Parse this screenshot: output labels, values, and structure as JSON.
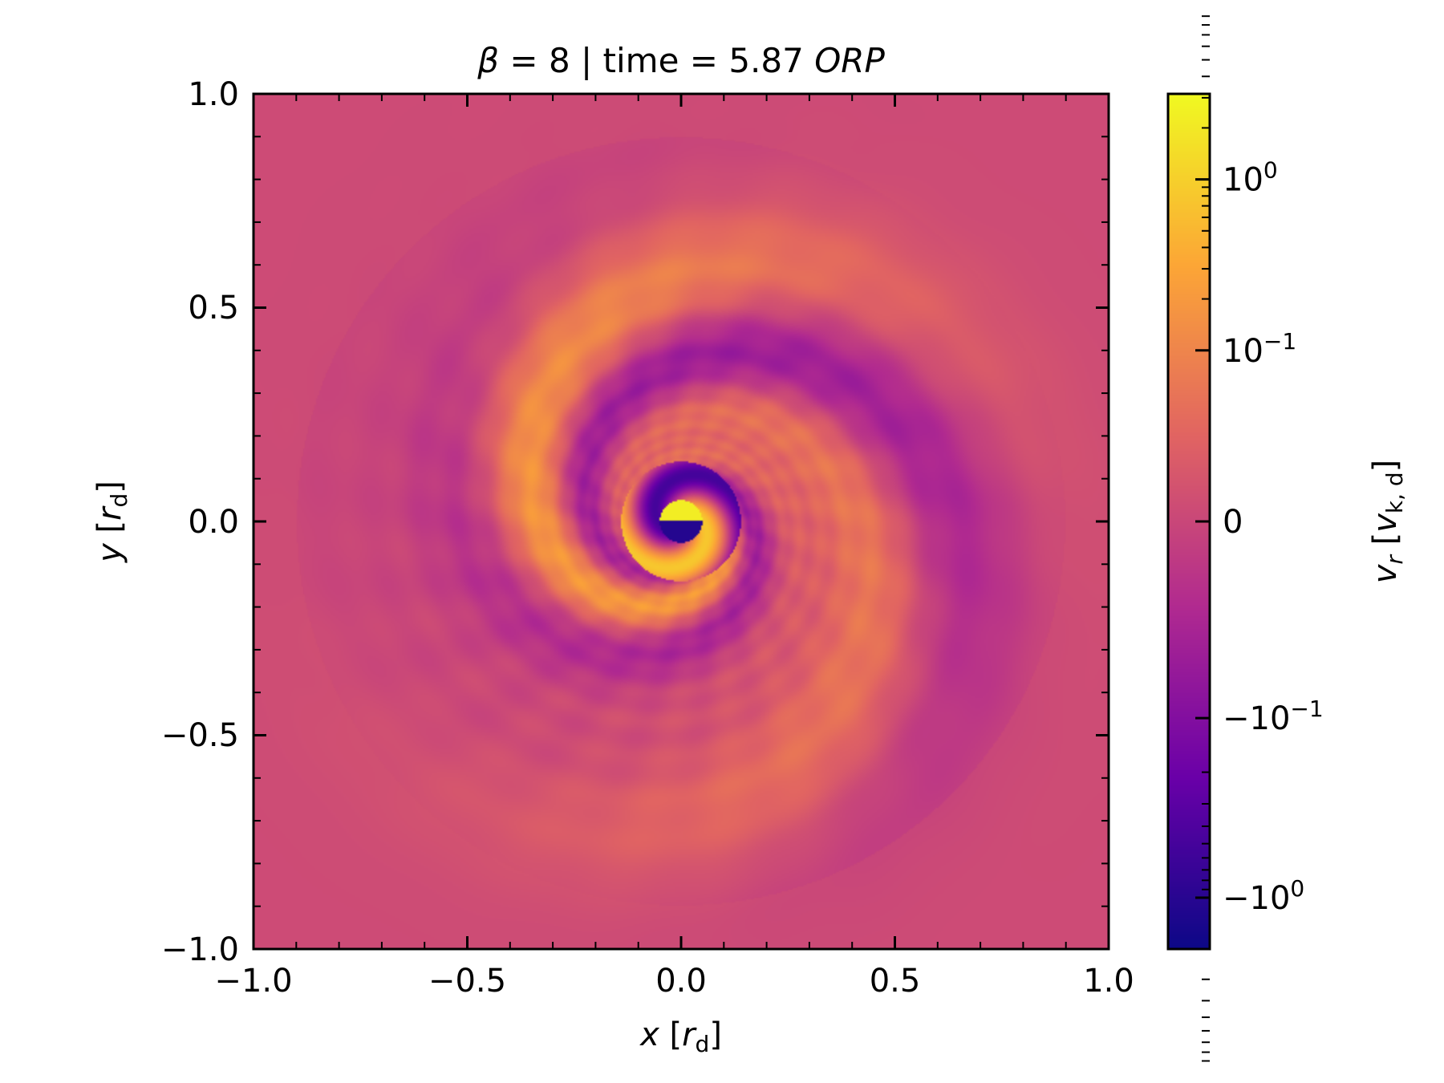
{
  "title": {
    "beta_symbol": "β",
    "beta_value": "8",
    "time_label": "time",
    "time_value": "5.87",
    "unit": "ORP"
  },
  "axes": {
    "x": {
      "var": "x",
      "unit": "r",
      "unit_sub": "d"
    },
    "y": {
      "var": "y",
      "unit": "r",
      "unit_sub": "d"
    }
  },
  "colorbar": {
    "label_var": "v",
    "label_var_sub": "r",
    "label_unit": "v",
    "label_unit_sub": "k, d",
    "ticks": [
      {
        "base": "10",
        "exp": "0",
        "sign": "",
        "frac": 0.9
      },
      {
        "base": "10",
        "exp": "−1",
        "sign": "",
        "frac": 0.7
      },
      {
        "base": "0",
        "exp": "",
        "sign": "",
        "frac": 0.5
      },
      {
        "base": "10",
        "exp": "−1",
        "sign": "−",
        "frac": 0.27
      },
      {
        "base": "10",
        "exp": "0",
        "sign": "−",
        "frac": 0.06
      }
    ]
  },
  "chart_data": {
    "type": "heatmap",
    "title": "β = 8 | time = 5.87 ORP",
    "xlabel": "x [r_d]",
    "ylabel": "y [r_d]",
    "xlim": [
      -1.0,
      1.0
    ],
    "ylim": [
      -1.0,
      1.0
    ],
    "xticks": [
      "−1.0",
      "−0.5",
      "0.0",
      "0.5",
      "1.0"
    ],
    "yticks": [
      "−1.0",
      "−0.5",
      "0.0",
      "0.5",
      "1.0"
    ],
    "colorbar_label": "v_r [v_k,d]",
    "colorbar_scale": "symlog",
    "colorbar_ticks": [
      "−10^0",
      "−10^−1",
      "0",
      "10^−1",
      "10^0"
    ],
    "colormap": [
      "#0d0887",
      "#6a00a8",
      "#b12a90",
      "#e16462",
      "#fca636",
      "#f0f921"
    ],
    "description_source": "simulated radial velocity field, spiral turbulent disk"
  }
}
